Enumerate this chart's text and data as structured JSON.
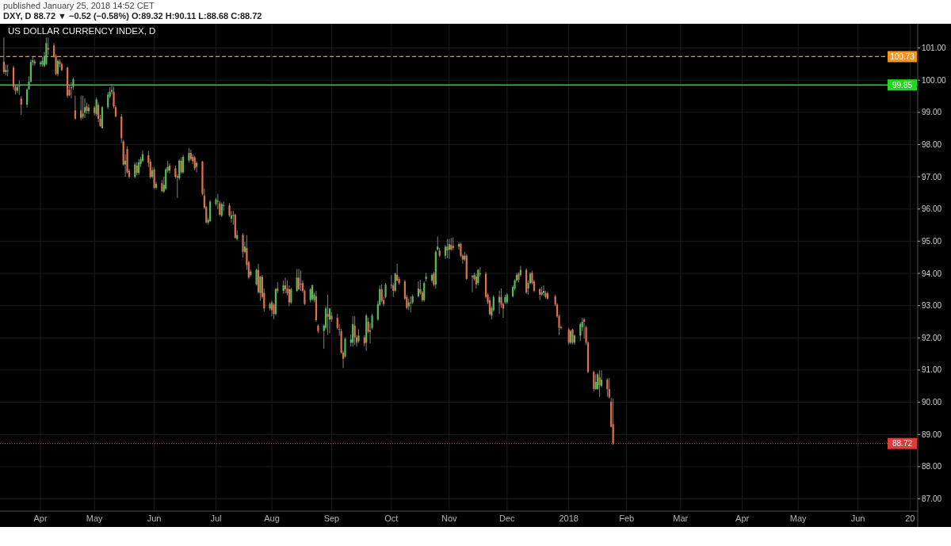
{
  "chart_data": {
    "type": "candlestick",
    "title": "US DOLLAR CURRENCY INDEX, D",
    "subtitle": "DXY, D 88.72 ▼ −0.52 (−0.58%) O:89.32 H:90.11 L:88.68 C:88.72",
    "annotations": [
      "published January 25, 2018 14:52 CET"
    ],
    "x": [
      "2017-03-15",
      "2017-03-16",
      "2017-03-17",
      "2017-03-20",
      "2017-03-21",
      "2017-03-22",
      "2017-03-23",
      "2017-03-24",
      "2017-03-27",
      "2017-03-28",
      "2017-03-29",
      "2017-03-30",
      "2017-03-31",
      "2017-04-03",
      "2017-04-04",
      "2017-04-05",
      "2017-04-06",
      "2017-04-07",
      "2017-04-10",
      "2017-04-11",
      "2017-04-12",
      "2017-04-13",
      "2017-04-14",
      "2017-04-17",
      "2017-04-18",
      "2017-04-19",
      "2017-04-20",
      "2017-04-21",
      "2017-04-24",
      "2017-04-25",
      "2017-04-26",
      "2017-04-27",
      "2017-04-28",
      "2017-05-01",
      "2017-05-02",
      "2017-05-03",
      "2017-05-04",
      "2017-05-05",
      "2017-05-08",
      "2017-05-09",
      "2017-05-10",
      "2017-05-11",
      "2017-05-12",
      "2017-05-15",
      "2017-05-16",
      "2017-05-17",
      "2017-05-18",
      "2017-05-19",
      "2017-05-22",
      "2017-05-23",
      "2017-05-24",
      "2017-05-25",
      "2017-05-26",
      "2017-05-29",
      "2017-05-30",
      "2017-05-31",
      "2017-06-01",
      "2017-06-02",
      "2017-06-05",
      "2017-06-06",
      "2017-06-07",
      "2017-06-08",
      "2017-06-09",
      "2017-06-12",
      "2017-06-13",
      "2017-06-14",
      "2017-06-15",
      "2017-06-16",
      "2017-06-19",
      "2017-06-20",
      "2017-06-21",
      "2017-06-22",
      "2017-06-23",
      "2017-06-26",
      "2017-06-27",
      "2017-06-28",
      "2017-06-29",
      "2017-06-30",
      "2017-07-03",
      "2017-07-04",
      "2017-07-05",
      "2017-07-06",
      "2017-07-07",
      "2017-07-10",
      "2017-07-11",
      "2017-07-12",
      "2017-07-13",
      "2017-07-14",
      "2017-07-17",
      "2017-07-18",
      "2017-07-19",
      "2017-07-20",
      "2017-07-21",
      "2017-07-24",
      "2017-07-25",
      "2017-07-26",
      "2017-07-27",
      "2017-07-28",
      "2017-07-31",
      "2017-08-01",
      "2017-08-02",
      "2017-08-03",
      "2017-08-04",
      "2017-08-07",
      "2017-08-08",
      "2017-08-09",
      "2017-08-10",
      "2017-08-11",
      "2017-08-14",
      "2017-08-15",
      "2017-08-16",
      "2017-08-17",
      "2017-08-18",
      "2017-08-21",
      "2017-08-22",
      "2017-08-23",
      "2017-08-24",
      "2017-08-25",
      "2017-08-28",
      "2017-08-29",
      "2017-08-30",
      "2017-08-31",
      "2017-09-01",
      "2017-09-04",
      "2017-09-05",
      "2017-09-06",
      "2017-09-07",
      "2017-09-08",
      "2017-09-11",
      "2017-09-12",
      "2017-09-13",
      "2017-09-14",
      "2017-09-15",
      "2017-09-18",
      "2017-09-19",
      "2017-09-20",
      "2017-09-21",
      "2017-09-22",
      "2017-09-25",
      "2017-09-26",
      "2017-09-27",
      "2017-09-28",
      "2017-09-29",
      "2017-10-02",
      "2017-10-03",
      "2017-10-04",
      "2017-10-05",
      "2017-10-06",
      "2017-10-09",
      "2017-10-10",
      "2017-10-11",
      "2017-10-12",
      "2017-10-13",
      "2017-10-16",
      "2017-10-17",
      "2017-10-18",
      "2017-10-19",
      "2017-10-20",
      "2017-10-23",
      "2017-10-24",
      "2017-10-25",
      "2017-10-26",
      "2017-10-27",
      "2017-10-30",
      "2017-10-31",
      "2017-11-01",
      "2017-11-02",
      "2017-11-03",
      "2017-11-06",
      "2017-11-07",
      "2017-11-08",
      "2017-11-09",
      "2017-11-10",
      "2017-11-13",
      "2017-11-14",
      "2017-11-15",
      "2017-11-16",
      "2017-11-17",
      "2017-11-20",
      "2017-11-21",
      "2017-11-22",
      "2017-11-23",
      "2017-11-24",
      "2017-11-27",
      "2017-11-28",
      "2017-11-29",
      "2017-11-30",
      "2017-12-01",
      "2017-12-04",
      "2017-12-05",
      "2017-12-06",
      "2017-12-07",
      "2017-12-08",
      "2017-12-11",
      "2017-12-12",
      "2017-12-13",
      "2017-12-14",
      "2017-12-15",
      "2017-12-18",
      "2017-12-19",
      "2017-12-20",
      "2017-12-21",
      "2017-12-22",
      "2017-12-26",
      "2017-12-27",
      "2017-12-28",
      "2017-12-29",
      "2018-01-02",
      "2018-01-03",
      "2018-01-04",
      "2018-01-05",
      "2018-01-08",
      "2018-01-09",
      "2018-01-10",
      "2018-01-11",
      "2018-01-12",
      "2018-01-15",
      "2018-01-16",
      "2018-01-17",
      "2018-01-18",
      "2018-01-19",
      "2018-01-22",
      "2018-01-23",
      "2018-01-24",
      "2018-01-25"
    ],
    "ohlc": [
      [
        100.57,
        101.32,
        100.2,
        100.25
      ],
      [
        100.25,
        100.48,
        100.15,
        100.32
      ],
      [
        100.28,
        100.48,
        100.12,
        100.3
      ],
      [
        100.39,
        100.45,
        99.7,
        99.79
      ],
      [
        99.79,
        99.85,
        99.55,
        99.67
      ],
      [
        99.67,
        99.88,
        99.6,
        99.79
      ],
      [
        99.8,
        99.99,
        99.54,
        99.82
      ],
      [
        99.43,
        99.5,
        98.92,
        99.24
      ],
      [
        99.24,
        99.75,
        99.15,
        99.71
      ],
      [
        99.71,
        100.12,
        99.7,
        99.95
      ],
      [
        99.95,
        100.64,
        99.93,
        100.56
      ],
      [
        100.55,
        100.72,
        100.45,
        100.62
      ],
      [
        100.58,
        100.64,
        100.44,
        100.52
      ],
      [
        100.5,
        100.6,
        100.42,
        100.55
      ],
      [
        100.48,
        100.72,
        100.42,
        100.6
      ],
      [
        100.44,
        100.88,
        100.4,
        100.75
      ],
      [
        100.5,
        101.32,
        100.46,
        101.15
      ],
      [
        101.0,
        101.32,
        100.78,
        100.95
      ],
      [
        101.08,
        101.15,
        100.7,
        100.72
      ],
      [
        100.75,
        100.8,
        100.15,
        100.19
      ],
      [
        100.19,
        100.65,
        100.12,
        100.6
      ],
      [
        100.58,
        100.65,
        100.4,
        100.5
      ],
      [
        100.5,
        100.55,
        100.28,
        100.31
      ],
      [
        100.39,
        100.42,
        99.45,
        99.52
      ],
      [
        99.7,
        99.85,
        99.5,
        99.53
      ],
      [
        99.78,
        99.93,
        99.44,
        99.75
      ],
      [
        99.79,
        100.08,
        99.7,
        100.03
      ],
      [
        99.06,
        99.52,
        98.78,
        98.8
      ],
      [
        99.06,
        99.52,
        98.75,
        98.82
      ],
      [
        98.86,
        99.52,
        98.8,
        98.96
      ],
      [
        98.99,
        99.44,
        98.82,
        99.16
      ],
      [
        99.19,
        99.3,
        98.95,
        99.04
      ],
      [
        99.04,
        99.25,
        98.95,
        99.15
      ],
      [
        99.15,
        99.2,
        98.9,
        98.98
      ],
      [
        98.94,
        99.46,
        98.88,
        99.4
      ],
      [
        99.23,
        99.3,
        98.7,
        98.8
      ],
      [
        98.8,
        98.92,
        98.55,
        98.58
      ],
      [
        98.51,
        99.2,
        98.5,
        99.16
      ],
      [
        99.16,
        99.63,
        99.1,
        99.55
      ],
      [
        99.49,
        99.78,
        99.44,
        99.64
      ],
      [
        99.64,
        99.88,
        99.55,
        99.7
      ],
      [
        99.64,
        99.8,
        99.12,
        99.18
      ],
      [
        99.16,
        99.22,
        98.85,
        98.87
      ],
      [
        98.87,
        98.95,
        98.05,
        98.2
      ],
      [
        98.1,
        98.15,
        97.35,
        97.38
      ],
      [
        97.38,
        97.7,
        97.0,
        97.5
      ],
      [
        97.86,
        97.95,
        97.1,
        97.14
      ],
      [
        97.18,
        97.25,
        96.95,
        97.0
      ],
      [
        97.0,
        97.45,
        96.95,
        97.38
      ],
      [
        97.35,
        97.45,
        97.05,
        97.12
      ],
      [
        97.12,
        97.55,
        97.05,
        97.45
      ],
      [
        97.4,
        97.62,
        97.3,
        97.55
      ],
      [
        97.5,
        97.82,
        97.45,
        97.7
      ],
      [
        97.67,
        97.8,
        97.3,
        97.43
      ],
      [
        97.47,
        97.55,
        96.95,
        96.99
      ],
      [
        97.0,
        97.3,
        96.95,
        97.2
      ],
      [
        97.23,
        97.3,
        96.62,
        96.66
      ],
      [
        96.66,
        96.85,
        96.6,
        96.78
      ],
      [
        96.8,
        96.9,
        96.52,
        96.56
      ],
      [
        96.54,
        97.0,
        96.5,
        96.75
      ],
      [
        96.63,
        97.28,
        96.58,
        97.23
      ],
      [
        97.19,
        97.5,
        97.12,
        97.31
      ],
      [
        97.35,
        97.42,
        97.1,
        97.19
      ],
      [
        97.26,
        97.35,
        96.95,
        97.0
      ],
      [
        97.02,
        97.08,
        96.35,
        96.98
      ],
      [
        96.95,
        97.55,
        96.9,
        97.5
      ],
      [
        97.5,
        97.6,
        97.1,
        97.14
      ],
      [
        97.14,
        97.68,
        97.1,
        97.62
      ],
      [
        97.5,
        97.89,
        97.45,
        97.74
      ],
      [
        97.74,
        97.84,
        97.5,
        97.55
      ],
      [
        97.62,
        97.7,
        97.4,
        97.48
      ],
      [
        97.6,
        97.65,
        97.2,
        97.26
      ],
      [
        97.31,
        97.48,
        97.14,
        97.43
      ],
      [
        97.47,
        97.5,
        96.42,
        96.47
      ],
      [
        96.42,
        96.64,
        95.99,
        96.04
      ],
      [
        96.06,
        96.1,
        95.55,
        95.58
      ],
      [
        95.58,
        95.72,
        95.51,
        95.66
      ],
      [
        95.63,
        96.28,
        95.6,
        96.23
      ],
      [
        96.15,
        96.35,
        96.1,
        96.3
      ],
      [
        96.25,
        96.47,
        95.99,
        96.22
      ],
      [
        96.18,
        96.25,
        95.78,
        95.82
      ],
      [
        95.8,
        96.2,
        95.75,
        96.15
      ],
      [
        96.12,
        96.23,
        95.94,
        96.1
      ],
      [
        96.11,
        96.18,
        95.75,
        95.8
      ],
      [
        95.7,
        95.94,
        95.58,
        95.8
      ],
      [
        95.82,
        95.94,
        95.51,
        95.79
      ],
      [
        95.82,
        95.86,
        95.08,
        95.1
      ],
      [
        95.07,
        95.34,
        95.02,
        95.19
      ],
      [
        95.19,
        95.25,
        94.5,
        94.67
      ],
      [
        94.67,
        94.98,
        94.62,
        94.83
      ],
      [
        94.79,
        95.19,
        94.11,
        94.26
      ],
      [
        94.35,
        94.4,
        93.82,
        93.87
      ],
      [
        93.95,
        94.12,
        93.9,
        94.06
      ],
      [
        93.66,
        94.15,
        93.62,
        94.11
      ],
      [
        94.11,
        94.3,
        93.38,
        93.42
      ],
      [
        93.39,
        93.92,
        93.15,
        93.9
      ],
      [
        93.9,
        93.95,
        93.22,
        93.27
      ],
      [
        93.39,
        93.53,
        92.81,
        92.91
      ],
      [
        92.91,
        93.1,
        92.85,
        93.05
      ],
      [
        93.1,
        93.15,
        92.67,
        92.86
      ],
      [
        93.03,
        93.08,
        92.57,
        92.74
      ],
      [
        92.74,
        93.55,
        92.7,
        93.51
      ],
      [
        93.53,
        93.73,
        93.39,
        93.46
      ],
      [
        93.46,
        93.78,
        93.37,
        93.63
      ],
      [
        93.63,
        93.87,
        93.39,
        93.51
      ],
      [
        93.53,
        93.78,
        93.32,
        93.39
      ],
      [
        93.51,
        93.63,
        92.98,
        93.1
      ],
      [
        93.1,
        93.55,
        93.05,
        93.51
      ],
      [
        93.46,
        94.14,
        93.42,
        93.87
      ],
      [
        93.87,
        94.14,
        93.47,
        93.51
      ],
      [
        93.68,
        94.09,
        93.46,
        93.65
      ],
      [
        93.7,
        93.78,
        93.4,
        93.46
      ],
      [
        93.46,
        93.5,
        93.02,
        93.05
      ],
      [
        93.17,
        93.55,
        93.1,
        93.51
      ],
      [
        93.2,
        93.66,
        93.15,
        93.63
      ],
      [
        93.17,
        93.4,
        93.1,
        93.34
      ],
      [
        93.29,
        93.46,
        92.5,
        92.55
      ],
      [
        92.38,
        92.42,
        92.15,
        92.21
      ],
      [
        92.21,
        92.42,
        91.66,
        92.38
      ],
      [
        92.31,
        92.98,
        92.25,
        92.91
      ],
      [
        92.74,
        93.34,
        92.09,
        92.65
      ],
      [
        92.57,
        92.93,
        92.14,
        92.91
      ],
      [
        92.69,
        92.8,
        92.5,
        92.57
      ],
      [
        92.62,
        92.74,
        92.26,
        92.31
      ],
      [
        92.28,
        92.43,
        92.07,
        92.25
      ],
      [
        92.21,
        92.28,
        91.5,
        91.54
      ],
      [
        91.54,
        91.6,
        91.06,
        91.35
      ],
      [
        91.42,
        92.02,
        91.38,
        91.97
      ],
      [
        91.85,
        92.11,
        91.73,
        91.95
      ],
      [
        91.85,
        92.67,
        91.73,
        92.43
      ],
      [
        92.38,
        92.67,
        91.78,
        92.02
      ],
      [
        92.02,
        92.09,
        91.73,
        91.85
      ],
      [
        91.9,
        92.26,
        91.85,
        92.07
      ],
      [
        92.02,
        92.09,
        91.73,
        91.83
      ],
      [
        91.85,
        92.74,
        91.59,
        92.69
      ],
      [
        92.5,
        92.62,
        92.14,
        92.19
      ],
      [
        92.23,
        92.45,
        91.83,
        92.19
      ],
      [
        92.31,
        92.74,
        92.26,
        92.69
      ],
      [
        92.57,
        93.15,
        92.52,
        93.05
      ],
      [
        93.03,
        93.63,
        92.98,
        93.51
      ],
      [
        93.51,
        93.66,
        93.1,
        93.15
      ],
      [
        93.17,
        93.27,
        92.98,
        93.05
      ],
      [
        93.27,
        93.7,
        93.22,
        93.65
      ],
      [
        93.65,
        93.95,
        93.53,
        93.62
      ],
      [
        93.63,
        93.7,
        93.27,
        93.46
      ],
      [
        93.46,
        94.02,
        93.42,
        93.99
      ],
      [
        93.95,
        94.3,
        93.75,
        93.78
      ],
      [
        93.83,
        93.9,
        93.65,
        93.7
      ],
      [
        93.75,
        93.8,
        93.18,
        93.22
      ],
      [
        93.27,
        93.34,
        92.88,
        92.93
      ],
      [
        92.98,
        93.22,
        92.86,
        93.1
      ],
      [
        93.1,
        93.29,
        92.79,
        93.08
      ],
      [
        93.1,
        93.34,
        93.05,
        93.29
      ],
      [
        93.29,
        93.75,
        93.25,
        93.53
      ],
      [
        93.51,
        93.8,
        93.35,
        93.39
      ],
      [
        93.41,
        93.46,
        93.12,
        93.17
      ],
      [
        93.17,
        93.75,
        93.12,
        93.7
      ],
      [
        93.83,
        94.02,
        93.75,
        93.9
      ],
      [
        93.78,
        94.0,
        93.72,
        93.95
      ],
      [
        93.99,
        94.05,
        93.6,
        93.65
      ],
      [
        93.65,
        94.72,
        93.53,
        94.67
      ],
      [
        94.74,
        95.15,
        94.7,
        94.83
      ],
      [
        94.71,
        94.8,
        94.5,
        94.55
      ],
      [
        94.55,
        94.88,
        94.45,
        94.83
      ],
      [
        94.83,
        95.07,
        94.47,
        94.71
      ],
      [
        94.74,
        95.07,
        94.45,
        94.91
      ],
      [
        94.88,
        95.1,
        94.7,
        94.74
      ],
      [
        94.86,
        95.12,
        94.72,
        94.79
      ],
      [
        94.83,
        94.96,
        94.74,
        94.91
      ],
      [
        94.91,
        94.96,
        94.5,
        94.55
      ],
      [
        94.55,
        94.6,
        94.3,
        94.43
      ],
      [
        94.43,
        94.67,
        94.38,
        94.55
      ],
      [
        94.55,
        94.6,
        93.8,
        93.83
      ],
      [
        93.92,
        93.95,
        93.42,
        93.88
      ],
      [
        93.83,
        94.02,
        93.78,
        93.95
      ],
      [
        93.9,
        93.99,
        93.53,
        93.66
      ],
      [
        93.7,
        94.14,
        93.63,
        94.11
      ],
      [
        94.0,
        94.19,
        93.9,
        93.97
      ],
      [
        93.99,
        94.05,
        93.22,
        93.27
      ],
      [
        93.34,
        93.39,
        93.05,
        93.1
      ],
      [
        93.17,
        93.27,
        92.7,
        92.74
      ],
      [
        92.69,
        92.98,
        92.57,
        92.93
      ],
      [
        92.86,
        93.32,
        92.81,
        93.27
      ],
      [
        93.1,
        93.46,
        92.74,
        93.27
      ],
      [
        93.27,
        93.53,
        92.93,
        93.03
      ],
      [
        93.05,
        93.1,
        92.62,
        92.91
      ],
      [
        93.1,
        93.34,
        93.05,
        93.27
      ],
      [
        93.1,
        93.39,
        93.05,
        93.34
      ],
      [
        93.29,
        93.63,
        93.25,
        93.58
      ],
      [
        93.53,
        93.82,
        93.48,
        93.78
      ],
      [
        93.78,
        94.02,
        93.72,
        93.95
      ],
      [
        93.99,
        94.04,
        93.72,
        93.8
      ],
      [
        93.95,
        94.23,
        93.9,
        94.11
      ],
      [
        94.11,
        94.16,
        93.36,
        93.41
      ],
      [
        93.53,
        93.78,
        93.34,
        93.7
      ],
      [
        93.7,
        94.04,
        93.66,
        93.99
      ],
      [
        94.02,
        94.08,
        93.66,
        93.7
      ],
      [
        93.75,
        93.8,
        93.42,
        93.46
      ],
      [
        93.51,
        93.55,
        93.17,
        93.34
      ],
      [
        93.34,
        93.58,
        93.3,
        93.41
      ],
      [
        93.39,
        93.63,
        93.3,
        93.46
      ],
      [
        93.39,
        93.46,
        93.22,
        93.27
      ],
      [
        93.39,
        93.44,
        93.18,
        93.22
      ],
      [
        93.29,
        93.34,
        92.98,
        93.03
      ],
      [
        93.03,
        93.08,
        92.62,
        92.67
      ],
      [
        92.67,
        92.72,
        92.09,
        92.31
      ],
      [
        92.33,
        92.38,
        92.26,
        92.3
      ],
      [
        92.26,
        92.31,
        91.78,
        91.85
      ],
      [
        91.85,
        92.26,
        91.8,
        92.21
      ],
      [
        92.26,
        92.28,
        91.8,
        91.85
      ],
      [
        91.85,
        92.1,
        91.78,
        92.07
      ],
      [
        92.07,
        92.48,
        91.9,
        92.43
      ],
      [
        92.33,
        92.62,
        92.21,
        92.5
      ],
      [
        92.57,
        92.62,
        91.97,
        92.5
      ],
      [
        92.33,
        92.38,
        91.78,
        91.85
      ],
      [
        91.85,
        91.9,
        90.9,
        90.94
      ],
      [
        90.94,
        90.98,
        90.34,
        90.41
      ],
      [
        90.41,
        90.87,
        90.39,
        90.63
      ],
      [
        90.41,
        90.92,
        90.38,
        90.87
      ],
      [
        90.77,
        90.99,
        90.17,
        90.53
      ],
      [
        90.51,
        90.99,
        90.46,
        90.7
      ],
      [
        90.7,
        90.75,
        90.17,
        90.41
      ],
      [
        90.41,
        90.75,
        90.12,
        90.15
      ],
      [
        90.02,
        90.14,
        89.22,
        89.24
      ],
      [
        89.32,
        90.11,
        88.68,
        88.72
      ]
    ],
    "colors": [
      "#e2704e",
      "#56bd5b",
      "#56bd5b",
      "#e2704e",
      "#e2704e",
      "#56bd5b",
      "#56bd5b",
      "#e2704e",
      "#56bd5b",
      "#56bd5b",
      "#56bd5b",
      "#56bd5b",
      "#e2704e",
      "#56bd5b",
      "#56bd5b",
      "#56bd5b",
      "#56bd5b",
      "#e2704e",
      "#e2704e",
      "#e2704e",
      "#56bd5b",
      "#e2704e",
      "#e2704e",
      "#e2704e",
      "#e2704e",
      "#e2704e",
      "#56bd5b",
      "#e2704e",
      "#e2704e",
      "#56bd5b",
      "#56bd5b",
      "#e2704e",
      "#56bd5b",
      "#e2704e",
      "#56bd5b",
      "#e2704e",
      "#e2704e",
      "#56bd5b",
      "#56bd5b",
      "#56bd5b",
      "#56bd5b",
      "#e2704e",
      "#e2704e",
      "#e2704e",
      "#e2704e",
      "#56bd5b",
      "#e2704e",
      "#e2704e",
      "#56bd5b",
      "#e2704e",
      "#56bd5b",
      "#56bd5b",
      "#56bd5b",
      "#e2704e",
      "#e2704e",
      "#56bd5b",
      "#e2704e",
      "#56bd5b",
      "#e2704e",
      "#56bd5b",
      "#56bd5b",
      "#56bd5b",
      "#e2704e",
      "#e2704e",
      "#e2704e",
      "#56bd5b",
      "#e2704e",
      "#56bd5b",
      "#56bd5b",
      "#e2704e",
      "#e2704e",
      "#e2704e",
      "#56bd5b",
      "#e2704e",
      "#e2704e",
      "#e2704e",
      "#56bd5b",
      "#56bd5b",
      "#56bd5b",
      "#e2704e",
      "#e2704e",
      "#56bd5b",
      "#e2704e",
      "#e2704e",
      "#56bd5b",
      "#e2704e",
      "#e2704e",
      "#56bd5b",
      "#e2704e",
      "#56bd5b",
      "#e2704e",
      "#e2704e",
      "#56bd5b",
      "#56bd5b",
      "#e2704e",
      "#56bd5b",
      "#e2704e",
      "#e2704e",
      "#56bd5b",
      "#e2704e",
      "#e2704e",
      "#56bd5b",
      "#e2704e",
      "#56bd5b",
      "#e2704e",
      "#e2704e",
      "#e2704e",
      "#56bd5b",
      "#56bd5b",
      "#e2704e",
      "#e2704e",
      "#e2704e",
      "#e2704e",
      "#56bd5b",
      "#56bd5b",
      "#56bd5b",
      "#e2704e",
      "#e2704e",
      "#56bd5b",
      "#56bd5b",
      "#e2704e",
      "#56bd5b",
      "#e2704e",
      "#e2704e",
      "#e2704e",
      "#e2704e",
      "#e2704e",
      "#56bd5b",
      "#56bd5b",
      "#56bd5b",
      "#e2704e",
      "#e2704e",
      "#56bd5b",
      "#e2704e",
      "#56bd5b",
      "#e2704e",
      "#e2704e",
      "#56bd5b",
      "#56bd5b",
      "#56bd5b",
      "#e2704e",
      "#e2704e",
      "#56bd5b",
      "#e2704e",
      "#e2704e",
      "#56bd5b",
      "#e2704e",
      "#e2704e",
      "#e2704e",
      "#e2704e",
      "#56bd5b",
      "#e2704e",
      "#56bd5b",
      "#56bd5b",
      "#e2704e",
      "#e2704e",
      "#56bd5b",
      "#56bd5b",
      "#56bd5b",
      "#e2704e",
      "#56bd5b",
      "#56bd5b",
      "#e2704e",
      "#56bd5b",
      "#e2704e",
      "#56bd5b",
      "#e2704e",
      "#e2704e",
      "#56bd5b",
      "#e2704e",
      "#e2704e",
      "#56bd5b",
      "#e2704e",
      "#e2704e",
      "#56bd5b",
      "#e2704e",
      "#56bd5b",
      "#e2704e",
      "#e2704e",
      "#e2704e",
      "#e2704e",
      "#56bd5b",
      "#56bd5b",
      "#56bd5b",
      "#e2704e",
      "#e2704e",
      "#56bd5b",
      "#56bd5b",
      "#56bd5b",
      "#56bd5b",
      "#56bd5b",
      "#e2704e",
      "#56bd5b",
      "#e2704e",
      "#56bd5b",
      "#56bd5b",
      "#e2704e",
      "#e2704e",
      "#e2704e",
      "#56bd5b",
      "#56bd5b",
      "#e2704e",
      "#e2704e",
      "#e2704e",
      "#e2704e",
      "#e2704e",
      "#e2704e",
      "#e2704e",
      "#56bd5b",
      "#e2704e",
      "#56bd5b",
      "#56bd5b",
      "#56bd5b",
      "#e2704e",
      "#e2704e",
      "#e2704e",
      "#e2704e",
      "#56bd5b",
      "#56bd5b",
      "#e2704e",
      "#56bd5b",
      "#e2704e",
      "#e2704e",
      "#e2704e",
      "#e2704e"
    ],
    "xlim": [
      "2017-03-13",
      "2018-07-02"
    ],
    "xticks": [
      {
        "value": "2017-04-03",
        "label": "Apr"
      },
      {
        "value": "2017-05-01",
        "label": "May"
      },
      {
        "value": "2017-06-01",
        "label": "Jun"
      },
      {
        "value": "2017-07-03",
        "label": "Jul"
      },
      {
        "value": "2017-08-01",
        "label": "Aug"
      },
      {
        "value": "2017-09-01",
        "label": "Sep"
      },
      {
        "value": "2017-10-02",
        "label": "Oct"
      },
      {
        "value": "2017-11-01",
        "label": "Nov"
      },
      {
        "value": "2017-12-01",
        "label": "Dec"
      },
      {
        "value": "2018-01-02",
        "label": "2018"
      },
      {
        "value": "2018-02-01",
        "label": "Feb"
      },
      {
        "value": "2018-03-01",
        "label": "Mar"
      },
      {
        "value": "2018-04-02",
        "label": "Apr"
      },
      {
        "value": "2018-05-01",
        "label": "May"
      },
      {
        "value": "2018-06-01",
        "label": "Jun"
      },
      {
        "value": "2018-06-28",
        "label": "20"
      }
    ],
    "ylim": [
      86.62,
      101.75
    ],
    "yticks": [
      {
        "value": 87,
        "label": "87.00"
      },
      {
        "value": 88,
        "label": "88.00"
      },
      {
        "value": 89,
        "label": "89.00"
      },
      {
        "value": 90,
        "label": "90.00"
      },
      {
        "value": 91,
        "label": "91.00"
      },
      {
        "value": 92,
        "label": "92.00"
      },
      {
        "value": 93,
        "label": "93.00"
      },
      {
        "value": 94,
        "label": "94.00"
      },
      {
        "value": 95,
        "label": "95.00"
      },
      {
        "value": 96,
        "label": "96.00"
      },
      {
        "value": 97,
        "label": "97.00"
      },
      {
        "value": 98,
        "label": "98.00"
      },
      {
        "value": 99,
        "label": "99.00"
      },
      {
        "value": 100,
        "label": "100.00"
      },
      {
        "value": 101,
        "label": "101.00"
      }
    ],
    "grid": true,
    "ref_lines": [
      {
        "axis": "y",
        "value": 100.73,
        "label": "100.73",
        "color": "#f7931e",
        "line_style": "dashed"
      },
      {
        "axis": "y",
        "value": 99.85,
        "label": "99.85",
        "color": "#22d622",
        "line_style": "solid"
      },
      {
        "axis": "y",
        "value": 88.72,
        "label": "88.72",
        "color": "#e03a3a",
        "line_style": "dotted"
      }
    ]
  }
}
